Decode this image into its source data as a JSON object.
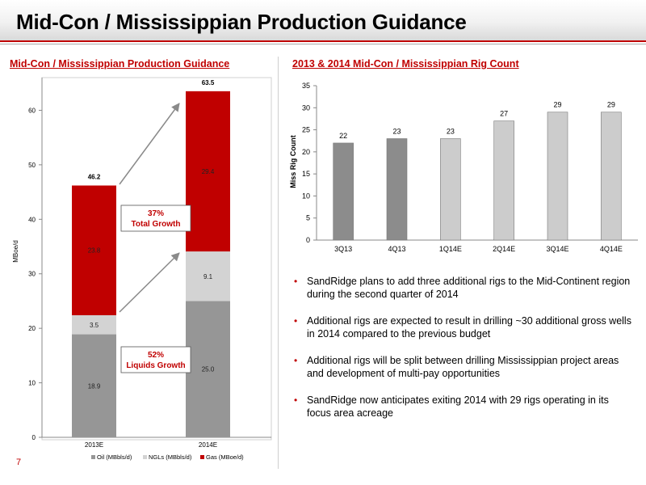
{
  "slide": {
    "title": "Mid-Con / Mississippian Production Guidance",
    "page_number": "7"
  },
  "left_panel": {
    "title": "Mid-Con / Mississippian Production Guidance"
  },
  "right_panel": {
    "title": "2013 & 2014 Mid-Con / Mississippian Rig Count"
  },
  "callouts": {
    "total_growth": "37% Total Growth",
    "liquids_growth": "52% Liquids Growth"
  },
  "colors": {
    "oil": "#969696",
    "ngl": "#d3d3d3",
    "gas": "#c00000",
    "rig_dark": "#8c8c8c",
    "rig_light": "#cccccc",
    "accent": "#c00000"
  },
  "bullets": [
    "SandRidge plans to add three additional rigs to the Mid-Continent region during the second quarter of 2014",
    "Additional rigs are expected to result in drilling ~30 additional gross wells in 2014 compared to the previous budget",
    "Additional rigs will be split between drilling Mississippian project areas and development of multi-pay opportunities",
    "SandRidge now anticipates exiting 2014 with 29 rigs operating in its focus area acreage"
  ],
  "chart_data": [
    {
      "type": "bar",
      "stacked": true,
      "title": "Mid-Con / Mississippian Production Guidance",
      "ylabel": "MBoe/d",
      "xlabel": "",
      "categories": [
        "2013E",
        "2014E"
      ],
      "series": [
        {
          "name": "Oil (MBbls/d)",
          "values": [
            18.9,
            25.0
          ],
          "labels": [
            "18.9",
            "25.0"
          ]
        },
        {
          "name": "NGLs (MBbls/d)",
          "values": [
            3.5,
            9.1
          ],
          "labels": [
            "3.5",
            "9.1"
          ]
        },
        {
          "name": "Gas (MBoe/d)",
          "values": [
            23.8,
            29.4
          ],
          "labels": [
            "23.8",
            "29.4"
          ]
        }
      ],
      "totals": [
        46.2,
        63.5
      ],
      "total_labels": [
        "46.2",
        "63.5"
      ],
      "ylim": [
        0,
        66
      ],
      "yticks": [
        0,
        10,
        20,
        30,
        40,
        50,
        60
      ],
      "ytick_labels": [
        "0",
        "10",
        "20",
        "30",
        "40",
        "50",
        "60"
      ],
      "legend_position": "bottom",
      "grid": false
    },
    {
      "type": "bar",
      "title": "2013 & 2014 Mid-Con / Mississippian Rig Count",
      "ylabel": "Miss Rig Count",
      "xlabel": "",
      "categories": [
        "3Q13",
        "4Q13",
        "1Q14E",
        "2Q14E",
        "3Q14E",
        "4Q14E"
      ],
      "values": [
        22,
        23,
        23,
        27,
        29,
        29
      ],
      "value_labels": [
        "22",
        "23",
        "23",
        "27",
        "29",
        "29"
      ],
      "ylim": [
        0,
        35
      ],
      "yticks": [
        0,
        5,
        10,
        15,
        20,
        25,
        30,
        35
      ],
      "ytick_labels": [
        "0",
        "5",
        "10",
        "15",
        "20",
        "25",
        "30",
        "35"
      ],
      "legend_position": "none",
      "grid": false
    }
  ]
}
